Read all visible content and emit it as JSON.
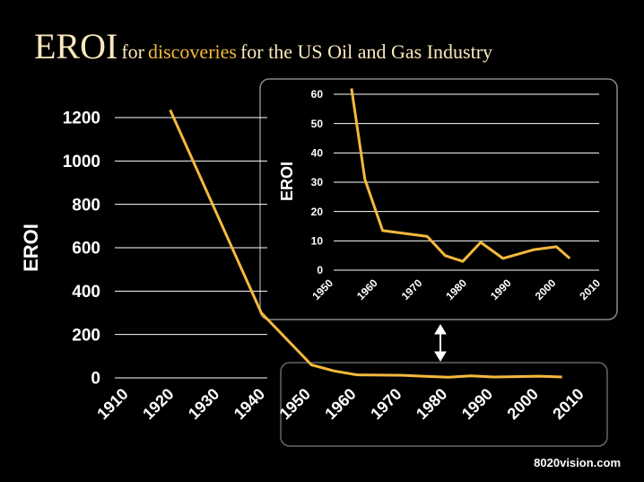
{
  "title": {
    "main": "EROI",
    "part1": "for",
    "highlight": "discoveries",
    "part2": "for the US Oil and Gas Industry"
  },
  "footer": "8020vision.com",
  "colors": {
    "line": "#f4b93c",
    "grid": "#ffffff",
    "background": "#000000",
    "title": "#fbe9bd",
    "highlight": "#f4b93c"
  },
  "chart_data": [
    {
      "type": "line",
      "title": "",
      "xlabel": "",
      "ylabel": "EROI",
      "xlim": [
        1910,
        2010
      ],
      "ylim": [
        0,
        1200
      ],
      "xticks": [
        "1910",
        "1920",
        "1930",
        "1940",
        "1950",
        "1960",
        "1970",
        "1980",
        "1990",
        "2000",
        "2010"
      ],
      "yticks": [
        "0",
        "200",
        "400",
        "600",
        "800",
        "1000",
        "1200"
      ],
      "grid": true,
      "series": [
        {
          "x": [
            1919,
            1939,
            1950,
            1955,
            1960,
            1965,
            1970,
            1975,
            1980,
            1985,
            1990,
            1995,
            2000,
            2005
          ],
          "y": [
            1235,
            300,
            60,
            32,
            14,
            13,
            12,
            7,
            3,
            9,
            4,
            6,
            8,
            4
          ]
        }
      ]
    },
    {
      "type": "line",
      "title": "",
      "xlabel": "",
      "ylabel": "EROI",
      "xlim": [
        1950,
        2010
      ],
      "ylim": [
        0,
        60
      ],
      "xticks": [
        "1950",
        "1960",
        "1970",
        "1980",
        "1990",
        "2000",
        "2010"
      ],
      "yticks": [
        "0",
        "10",
        "20",
        "30",
        "40",
        "50",
        "60"
      ],
      "grid": true,
      "series": [
        {
          "x": [
            1954,
            1957,
            1961,
            1971,
            1975,
            1979,
            1983,
            1988,
            1995,
            2000,
            2003
          ],
          "y": [
            62,
            31,
            13.5,
            11.5,
            5,
            3,
            9.5,
            4,
            7,
            8,
            4
          ]
        }
      ]
    }
  ]
}
